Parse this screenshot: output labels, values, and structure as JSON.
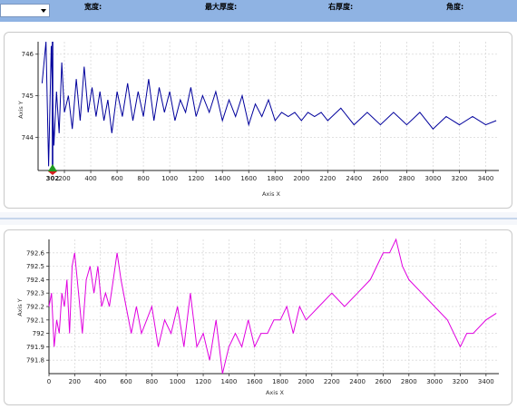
{
  "toolbar": {
    "combo_value": "",
    "width_label": "宽度:",
    "max_thickness_label": "最大厚度:",
    "right_thickness_label": "右厚度:",
    "angle_label": "角度:"
  },
  "charts": [
    {
      "xlabel": "Axis X",
      "ylabel": "Axis Y",
      "marker_label": "302",
      "line_color": "#00009c",
      "x_ticks": [
        "200",
        "400",
        "600",
        "800",
        "1000",
        "1200",
        "1400",
        "1600",
        "1800",
        "2000",
        "2200",
        "2400",
        "2600",
        "2800",
        "3000",
        "3200",
        "3400"
      ],
      "y_ticks": [
        "744",
        "745",
        "746"
      ]
    },
    {
      "xlabel": "Axis X",
      "ylabel": "Axis Y",
      "line_color": "#e000e0",
      "x_ticks": [
        "0",
        "200",
        "400",
        "600",
        "800",
        "1000",
        "1200",
        "1400",
        "1600",
        "1800",
        "2000",
        "2200",
        "2400",
        "2600",
        "2800",
        "3000",
        "3200",
        "3400"
      ],
      "y_ticks": [
        "791.8",
        "791.9",
        "792",
        "792.1",
        "792.2",
        "792.3",
        "792.4",
        "792.5",
        "792.6"
      ]
    }
  ],
  "chart_data": [
    {
      "type": "line",
      "xlabel": "Axis X",
      "ylabel": "Axis Y",
      "xlim": [
        0,
        3500
      ],
      "ylim": [
        743.2,
        746.3
      ],
      "grid": true,
      "annotations": [
        "302"
      ],
      "series": [
        {
          "x": [
            30,
            60,
            80,
            100,
            120,
            140,
            160,
            180,
            200,
            230,
            260,
            290,
            320,
            350,
            380,
            410,
            440,
            470,
            500,
            530,
            560,
            600,
            640,
            680,
            720,
            760,
            800,
            840,
            880,
            920,
            960,
            1000,
            1040,
            1080,
            1120,
            1160,
            1200,
            1250,
            1300,
            1350,
            1400,
            1450,
            1500,
            1550,
            1600,
            1650,
            1700,
            1750,
            1800,
            1850,
            1900,
            1950,
            2000,
            2050,
            2100,
            2150,
            2200,
            2300,
            2400,
            2500,
            2600,
            2700,
            2800,
            2900,
            3000,
            3100,
            3200,
            3300,
            3400,
            3480
          ],
          "y": [
            745.3,
            746.5,
            743.3,
            746.2,
            743.8,
            745.1,
            744.1,
            745.8,
            744.6,
            745.0,
            744.2,
            745.4,
            744.4,
            745.7,
            744.6,
            745.2,
            744.5,
            745.1,
            744.4,
            744.9,
            744.1,
            745.1,
            744.5,
            745.3,
            744.4,
            745.1,
            744.5,
            745.4,
            744.4,
            745.2,
            744.6,
            745.1,
            744.4,
            744.9,
            744.6,
            745.2,
            744.5,
            745.0,
            744.6,
            745.1,
            744.4,
            744.9,
            744.5,
            745.0,
            744.3,
            744.8,
            744.5,
            744.9,
            744.4,
            744.6,
            744.5,
            744.6,
            744.4,
            744.6,
            744.5,
            744.6,
            744.4,
            744.7,
            744.3,
            744.6,
            744.3,
            744.6,
            744.3,
            744.6,
            744.2,
            744.5,
            744.3,
            744.5,
            744.3,
            744.4
          ]
        }
      ]
    },
    {
      "type": "line",
      "xlabel": "Axis X",
      "ylabel": "Axis Y",
      "xlim": [
        0,
        3500
      ],
      "ylim": [
        791.7,
        792.7
      ],
      "grid": true,
      "series": [
        {
          "x": [
            0,
            20,
            40,
            60,
            80,
            100,
            120,
            140,
            160,
            180,
            200,
            230,
            260,
            290,
            320,
            350,
            380,
            410,
            440,
            470,
            500,
            530,
            560,
            600,
            640,
            680,
            720,
            760,
            800,
            850,
            900,
            950,
            1000,
            1050,
            1100,
            1150,
            1200,
            1250,
            1300,
            1350,
            1400,
            1450,
            1500,
            1550,
            1600,
            1650,
            1700,
            1750,
            1800,
            1850,
            1900,
            1950,
            2000,
            2100,
            2200,
            2300,
            2400,
            2500,
            2600,
            2650,
            2700,
            2750,
            2800,
            2900,
            3000,
            3100,
            3200,
            3250,
            3300,
            3400,
            3480
          ],
          "y": [
            792.2,
            792.3,
            791.9,
            792.1,
            792.0,
            792.3,
            792.2,
            792.4,
            792.0,
            792.5,
            792.6,
            792.3,
            792.0,
            792.4,
            792.5,
            792.3,
            792.5,
            792.2,
            792.3,
            792.2,
            792.4,
            792.6,
            792.4,
            792.2,
            792.0,
            792.2,
            792.0,
            792.1,
            792.2,
            791.9,
            792.1,
            792.0,
            792.2,
            791.9,
            792.3,
            791.9,
            792.0,
            791.8,
            792.1,
            791.7,
            791.9,
            792.0,
            791.9,
            792.1,
            791.9,
            792.0,
            792.0,
            792.1,
            792.1,
            792.2,
            792.0,
            792.2,
            792.1,
            792.2,
            792.3,
            792.2,
            792.3,
            792.4,
            792.6,
            792.6,
            792.7,
            792.5,
            792.4,
            792.3,
            792.2,
            792.1,
            791.9,
            792.0,
            792.0,
            792.1,
            792.15
          ]
        }
      ]
    }
  ]
}
